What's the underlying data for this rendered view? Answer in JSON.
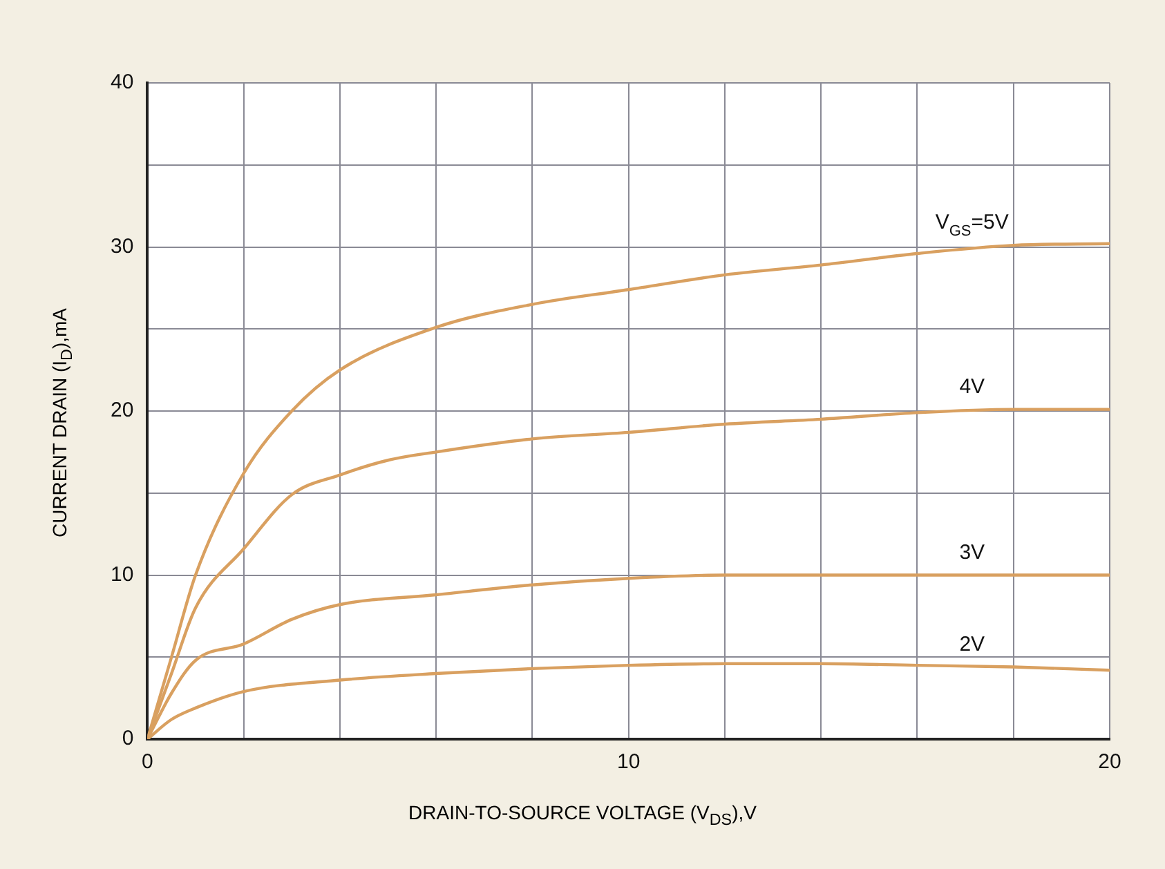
{
  "chart_data": {
    "type": "line",
    "xlabel": "DRAIN-TO-SOURCE VOLTAGE (V$_{DS}$),V",
    "ylabel": "CURRENT DRAIN (I$_{D}$),mA",
    "xlim": [
      0,
      20
    ],
    "ylim": [
      0,
      40
    ],
    "xticks": [
      0,
      {
        "value": 2,
        "label": null
      },
      {
        "value": 4,
        "label": null
      },
      {
        "value": 6,
        "label": null
      },
      {
        "value": 8,
        "label": null
      },
      10,
      {
        "value": 12,
        "label": null
      },
      {
        "value": 14,
        "label": null
      },
      {
        "value": 16,
        "label": null
      },
      {
        "value": 18,
        "label": null
      },
      20
    ],
    "yticks": [
      0,
      {
        "value": 5,
        "label": null
      },
      10,
      {
        "value": 15,
        "label": null
      },
      20,
      {
        "value": 25,
        "label": null
      },
      30,
      {
        "value": 35,
        "label": null
      },
      40
    ],
    "grid": true,
    "legend": false,
    "marker": "none",
    "line_style": "solid",
    "series": [
      {
        "name": "V$_{GS}$=5V",
        "color": "#d9a060",
        "x": [
          0,
          0.5,
          1,
          2,
          3,
          4,
          6,
          8,
          10,
          12,
          14,
          16,
          18,
          20
        ],
        "values": [
          0,
          5,
          10,
          16.2,
          20,
          22.5,
          25.1,
          26.5,
          27.4,
          28.3,
          28.9,
          29.6,
          30.1,
          30.2
        ]
      },
      {
        "name": "4V",
        "color": "#d9a060",
        "x": [
          0,
          0.5,
          1,
          2,
          3,
          4,
          5,
          6,
          8,
          10,
          12,
          14,
          16,
          18,
          20
        ],
        "values": [
          0,
          4,
          8,
          11.6,
          14.9,
          16.1,
          17,
          17.5,
          18.3,
          18.7,
          19.2,
          19.5,
          19.9,
          20.1,
          20.1
        ]
      },
      {
        "name": "3V",
        "color": "#d9a060",
        "x": [
          0,
          0.5,
          1,
          2,
          3,
          4,
          6,
          8,
          10,
          12,
          14,
          16,
          18,
          20
        ],
        "values": [
          0,
          2.8,
          4.8,
          5.8,
          7.3,
          8.2,
          8.8,
          9.4,
          9.8,
          10,
          10,
          10,
          10,
          10
        ]
      },
      {
        "name": "2V",
        "color": "#d9a060",
        "x": [
          0,
          0.5,
          1,
          2,
          4,
          6,
          8,
          10,
          12,
          14,
          16,
          18,
          20
        ],
        "values": [
          0,
          1.2,
          1.9,
          2.9,
          3.6,
          4,
          4.3,
          4.5,
          4.6,
          4.6,
          4.5,
          4.4,
          4.2
        ]
      }
    ]
  }
}
